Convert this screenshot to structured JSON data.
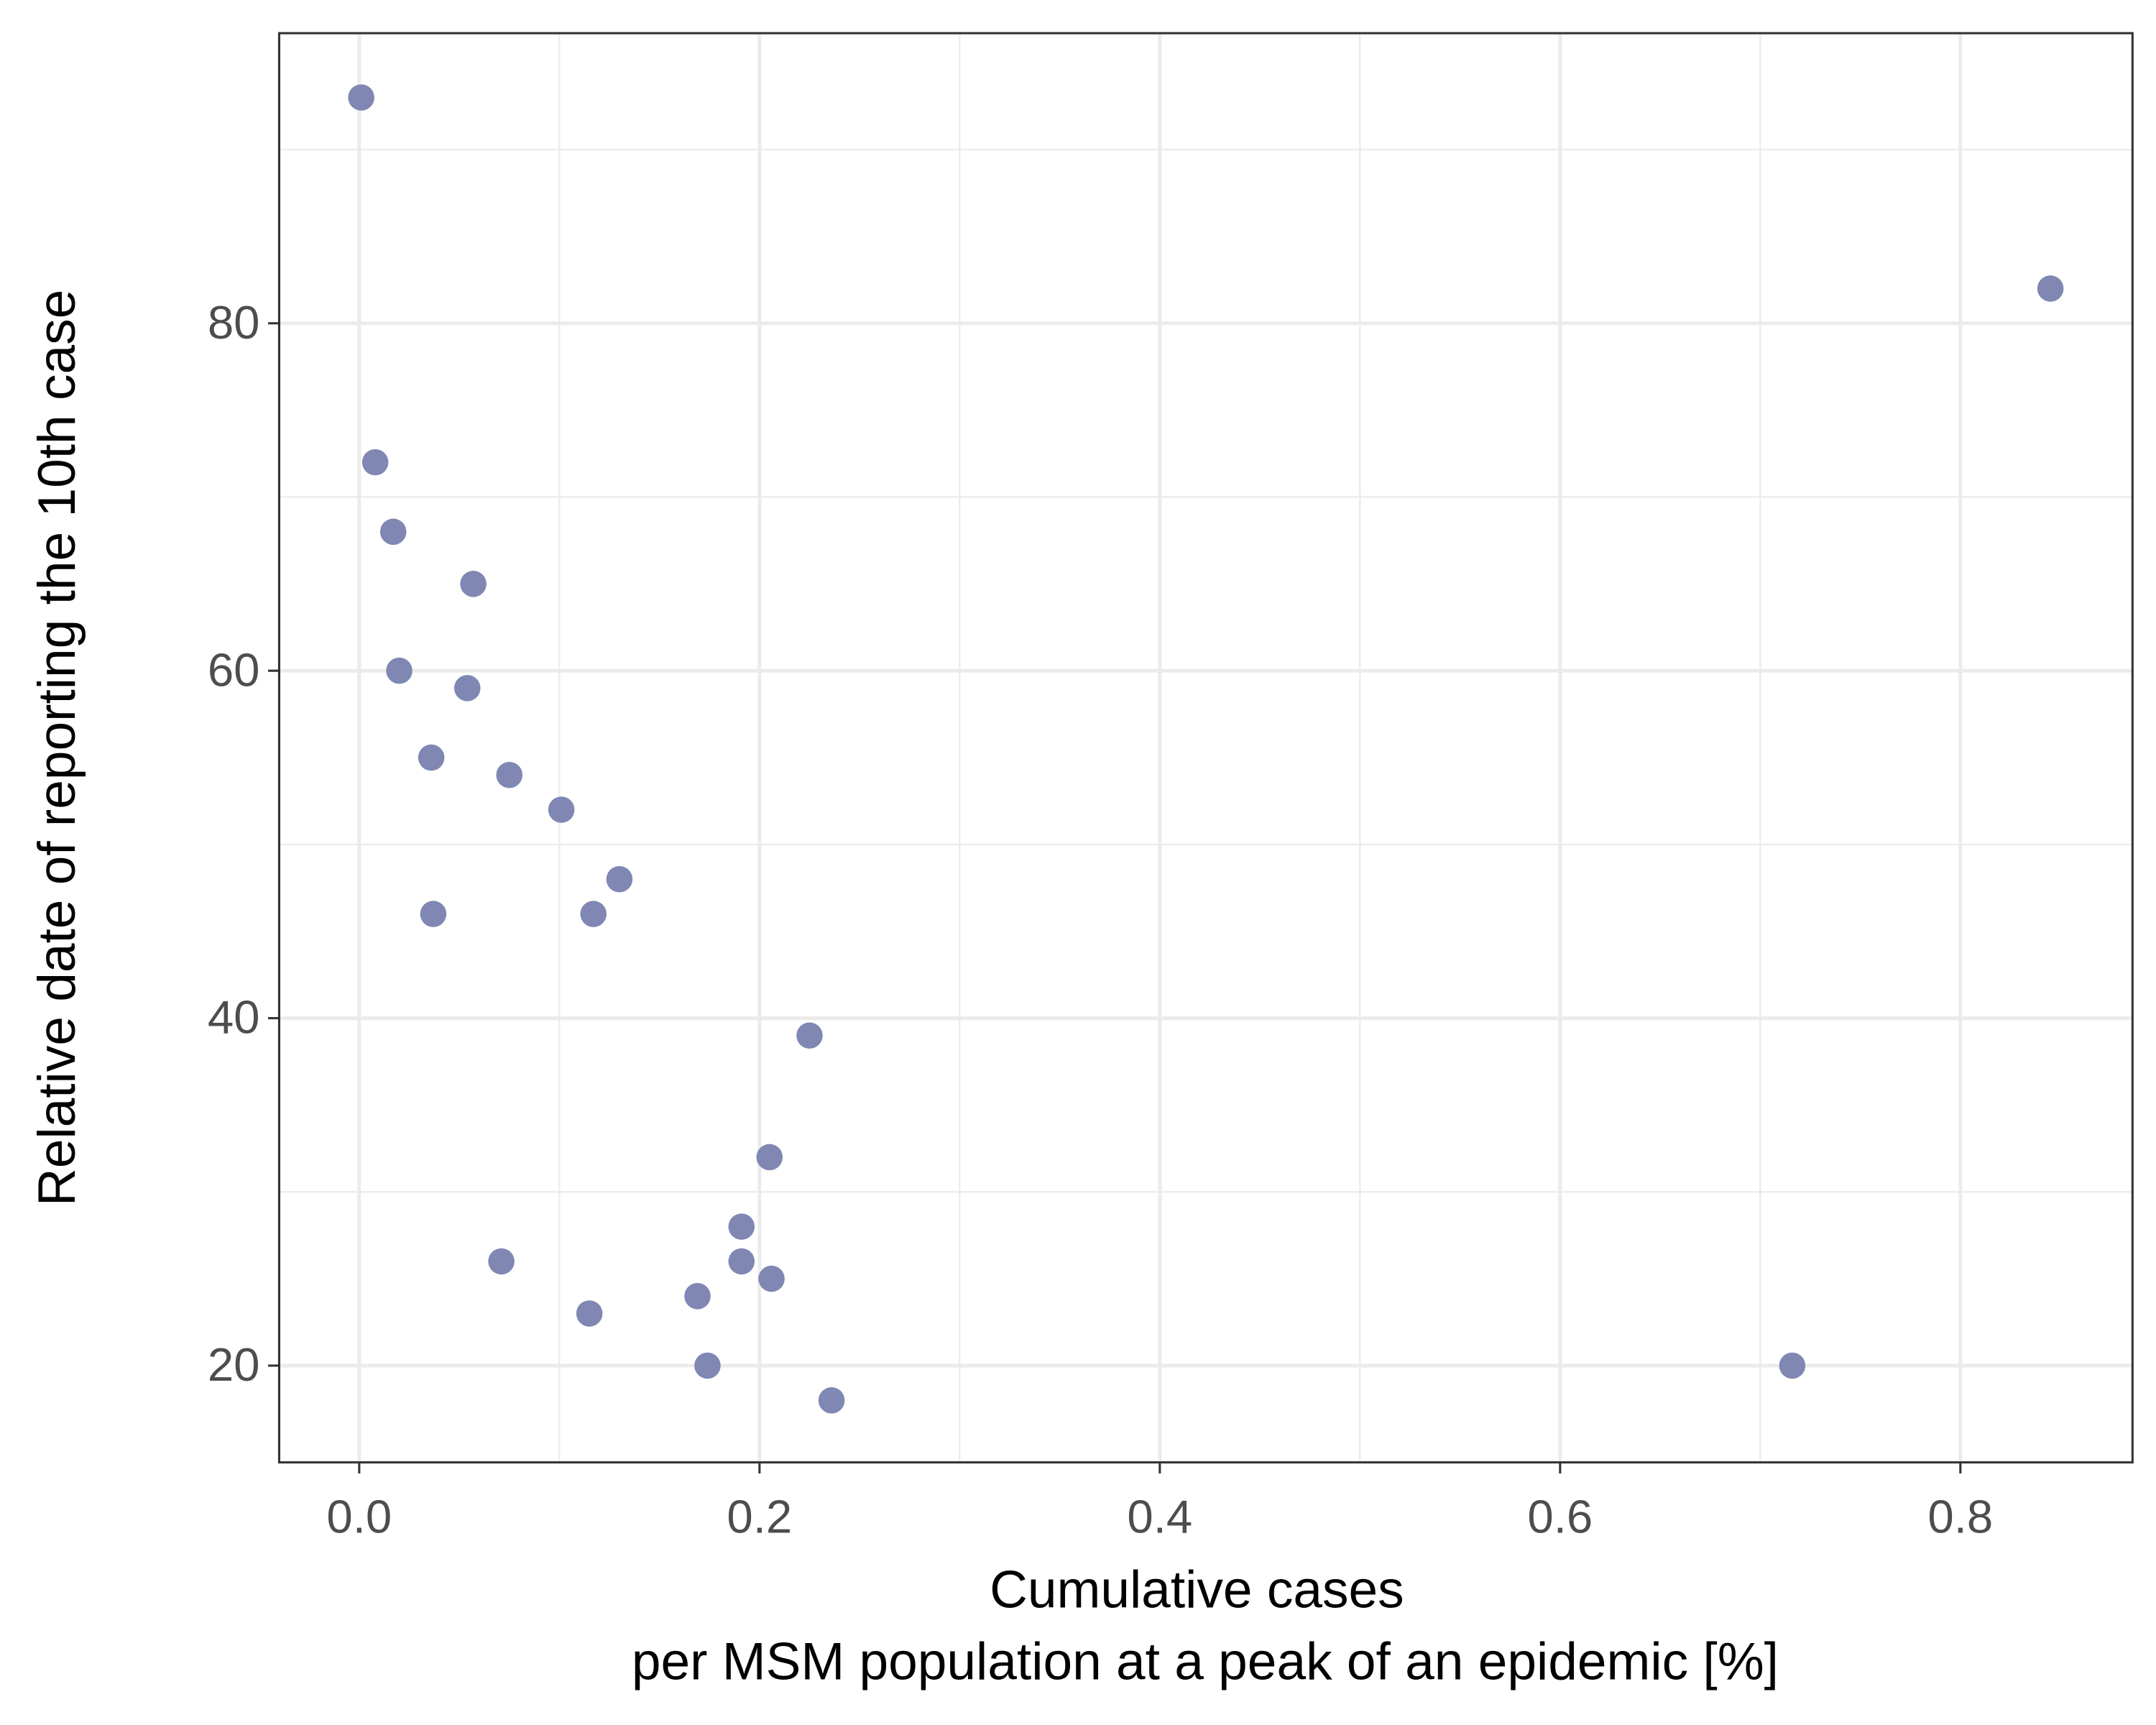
{
  "chart_data": {
    "type": "scatter",
    "xlabel": [
      "Cumulative cases",
      "per MSM population at a peak of an epidemic [%]"
    ],
    "ylabel": "Relative date of reporting the 10th case",
    "x": [
      0.001,
      0.845,
      0.008,
      0.017,
      0.057,
      0.02,
      0.054,
      0.036,
      0.075,
      0.101,
      0.13,
      0.037,
      0.117,
      0.225,
      0.205,
      0.191,
      0.071,
      0.191,
      0.206,
      0.115,
      0.169,
      0.174,
      0.716,
      0.236
    ],
    "y": [
      93,
      82,
      72,
      68,
      65,
      60,
      59,
      55,
      54,
      52,
      48,
      46,
      46,
      39,
      32,
      28,
      26,
      26,
      25,
      23,
      24,
      20,
      20,
      18
    ],
    "color": "#7f87b2",
    "xlim": [
      -0.04,
      0.886
    ],
    "ylim": [
      14.43,
      96.7
    ],
    "xticks": [
      {
        "value": 0,
        "label": "0.0"
      },
      0.2,
      0.4,
      0.6,
      0.8
    ],
    "yticks": [
      20,
      40,
      60,
      80
    ],
    "grid": true,
    "minor_grid": true
  }
}
